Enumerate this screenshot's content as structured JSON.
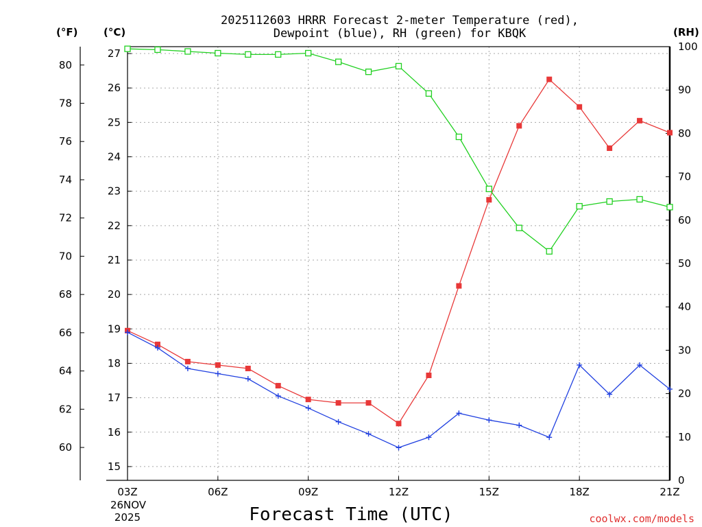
{
  "chart_data": {
    "type": "line",
    "title": [
      "2025112603 HRRR Forecast 2-meter Temperature (red),",
      "Dewpoint (blue), RH (green) for KBQK"
    ],
    "xlabel": "Forecast Time (UTC)",
    "credit": "coolwx.com/models",
    "x": [
      0,
      1,
      2,
      3,
      4,
      5,
      6,
      7,
      8,
      9,
      10,
      11,
      12,
      13,
      14,
      15,
      16,
      17,
      18
    ],
    "x_ticks": [
      {
        "x": 0,
        "label": "03Z"
      },
      {
        "x": 3,
        "label": "06Z"
      },
      {
        "x": 6,
        "label": "09Z"
      },
      {
        "x": 9,
        "label": "12Z"
      },
      {
        "x": 12,
        "label": "15Z"
      },
      {
        "x": 15,
        "label": "18Z"
      },
      {
        "x": 18,
        "label": "21Z"
      }
    ],
    "date_label": [
      "26NOV",
      "2025"
    ],
    "xlim": [
      0,
      18
    ],
    "left_axis_c": {
      "unit": "(°C)",
      "ylim": [
        14.6,
        27.2
      ],
      "ticks": [
        15,
        16,
        17,
        18,
        19,
        20,
        21,
        22,
        23,
        24,
        25,
        26,
        27
      ]
    },
    "left_axis_f": {
      "unit": "(°F)",
      "ticks": [
        60,
        62,
        64,
        66,
        68,
        70,
        72,
        74,
        76,
        78,
        80
      ]
    },
    "right_axis_rh": {
      "unit": "(RH)",
      "ylim": [
        0,
        100
      ],
      "ticks": [
        0,
        10,
        20,
        30,
        40,
        50,
        60,
        70,
        80,
        90,
        100
      ]
    },
    "series": [
      {
        "name": "Temperature",
        "axis": "C",
        "color": "#e83838",
        "marker": "filled-square",
        "values": [
          18.95,
          18.55,
          18.05,
          17.95,
          17.85,
          17.35,
          16.95,
          16.85,
          16.85,
          16.25,
          17.65,
          20.25,
          22.75,
          24.9,
          26.25,
          25.45,
          24.25,
          25.05,
          24.7
        ]
      },
      {
        "name": "Dewpoint",
        "axis": "C",
        "color": "#2040e0",
        "marker": "plus",
        "values": [
          18.9,
          18.45,
          17.85,
          17.7,
          17.55,
          17.05,
          16.7,
          16.3,
          15.95,
          15.55,
          15.85,
          16.55,
          16.35,
          16.2,
          15.85,
          17.95,
          17.1,
          17.95,
          17.25
        ]
      },
      {
        "name": "RH",
        "axis": "RH",
        "color": "#20d020",
        "marker": "open-square",
        "values": [
          99.5,
          99.3,
          98.9,
          98.5,
          98.2,
          98.2,
          98.5,
          96.5,
          94.2,
          95.5,
          89.2,
          79.2,
          67.2,
          58.2,
          52.8,
          63.2,
          64.3,
          64.8,
          63.0
        ]
      }
    ]
  }
}
